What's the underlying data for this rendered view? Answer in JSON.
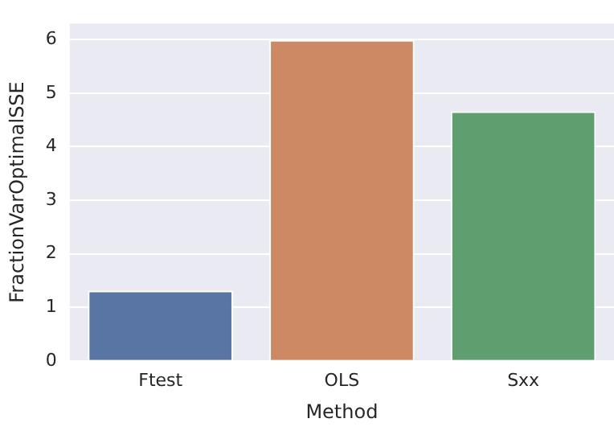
{
  "chart_data": {
    "type": "bar",
    "xlabel": "Method",
    "ylabel": "FractionVarOptimalSSE",
    "categories": [
      "Ftest",
      "OLS",
      "Sxx"
    ],
    "values": [
      1.31,
      5.99,
      4.66
    ],
    "colors": [
      "#5975a4",
      "#cc8963",
      "#5f9e6e"
    ],
    "ylim": [
      0,
      6.3
    ],
    "yticks": [
      0,
      1,
      2,
      3,
      4,
      5,
      6
    ],
    "grid": "y",
    "legend": false
  }
}
